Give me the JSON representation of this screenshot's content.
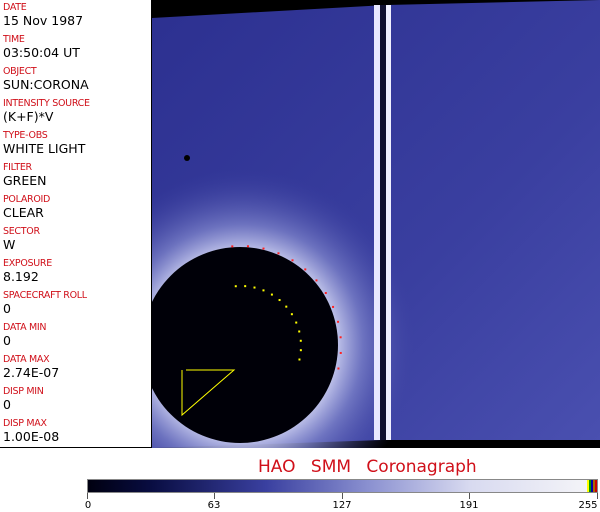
{
  "header_fields": [
    {
      "label": "DATE",
      "value": "15 Nov 1987"
    },
    {
      "label": "TIME",
      "value": "03:50:04 UT"
    },
    {
      "label": "OBJECT",
      "value": "SUN:CORONA"
    },
    {
      "label": "INTENSITY SOURCE",
      "value": "(K+F)*V"
    },
    {
      "label": "TYPE-OBS",
      "value": "WHITE LIGHT"
    },
    {
      "label": "FILTER",
      "value": "GREEN"
    },
    {
      "label": "POLAROID",
      "value": "CLEAR"
    },
    {
      "label": "SECTOR",
      "value": "W"
    },
    {
      "label": "EXPOSURE",
      "value": "8.192"
    },
    {
      "label": "SPACECRAFT ROLL",
      "value": "0"
    },
    {
      "label": "DATA MIN",
      "value": "0"
    },
    {
      "label": "DATA MAX",
      "value": "2.74E-07"
    },
    {
      "label": "DISP MIN",
      "value": "0"
    },
    {
      "label": "DISP MAX",
      "value": "1.00E-08"
    }
  ],
  "title": "HAO SMM Coronagraph",
  "colorbar": {
    "ticks": [
      "0",
      "63",
      "127",
      "191",
      "255"
    ],
    "colors": {
      "low": "#000010",
      "mid": "#3a40a0",
      "high": "#f4f4f8"
    }
  }
}
